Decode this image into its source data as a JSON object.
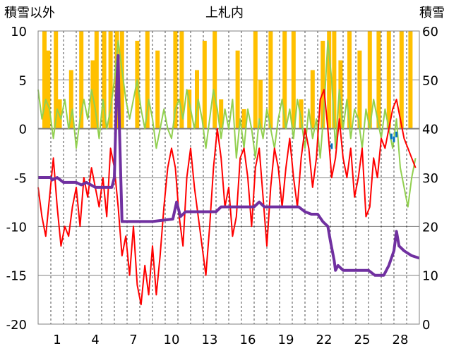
{
  "chart_data": {
    "type": "line",
    "title": "上札内",
    "left_axis_title": "積雪以外",
    "right_axis_title": "積雪",
    "y_left": {
      "range": [
        -20,
        10
      ],
      "ticks": [
        "10",
        "5",
        "0",
        "-5",
        "-10",
        "-15",
        "-20"
      ],
      "tick_values": [
        10,
        5,
        0,
        -5,
        -10,
        -15,
        -20
      ]
    },
    "y_right": {
      "range": [
        0,
        60
      ],
      "ticks": [
        "60",
        "50",
        "40",
        "30",
        "20",
        "10",
        "0"
      ],
      "tick_values": [
        60,
        50,
        40,
        30,
        20,
        10,
        0
      ]
    },
    "x": {
      "range": [
        0,
        30
      ],
      "tick_labels": [
        "1",
        "4",
        "7",
        "10",
        "13",
        "16",
        "19",
        "22",
        "25",
        "28"
      ],
      "tick_values": [
        1.5,
        4.5,
        7.5,
        10.5,
        13.5,
        16.5,
        19.5,
        22.5,
        25.5,
        28.5
      ]
    },
    "grid": true,
    "colors": {
      "precip_bar": "#ffc000",
      "temp_line": "#ff0000",
      "green_line": "#92d050",
      "snow_depth": "#7030a0",
      "blue_marks": "#0070c0",
      "zero_line": "#808080"
    },
    "series": [
      {
        "key": "precip",
        "type": "bar",
        "axis": "left",
        "values": [
          [
            0.5,
            10
          ],
          [
            0.8,
            8
          ],
          [
            1.4,
            10
          ],
          [
            1.7,
            3
          ],
          [
            2.6,
            6
          ],
          [
            3.4,
            10
          ],
          [
            4.3,
            7
          ],
          [
            4.6,
            10
          ],
          [
            5.2,
            10
          ],
          [
            5.7,
            10
          ],
          [
            6.2,
            10
          ],
          [
            6.6,
            10
          ],
          [
            7.8,
            9
          ],
          [
            8.6,
            10
          ],
          [
            9.4,
            8
          ],
          [
            10.8,
            10
          ],
          [
            11.3,
            10
          ],
          [
            11.9,
            4
          ],
          [
            12.5,
            6
          ],
          [
            13.1,
            9
          ],
          [
            13.9,
            10
          ],
          [
            14.4,
            3
          ],
          [
            15.7,
            8
          ],
          [
            16.2,
            2
          ],
          [
            17.1,
            10
          ],
          [
            17.5,
            5
          ],
          [
            18.3,
            10
          ],
          [
            19.4,
            10
          ],
          [
            20.1,
            10
          ],
          [
            20.7,
            3
          ],
          [
            21.6,
            6
          ],
          [
            22.4,
            9
          ],
          [
            22.9,
            10
          ],
          [
            23.3,
            10
          ],
          [
            23.8,
            7
          ],
          [
            24.5,
            10
          ],
          [
            25.3,
            8
          ],
          [
            26.1,
            10
          ],
          [
            26.8,
            10
          ],
          [
            27.6,
            10
          ],
          [
            28.6,
            10
          ],
          [
            29.3,
            10
          ]
        ]
      },
      {
        "key": "temperature",
        "type": "line",
        "axis": "left",
        "points": [
          [
            0,
            -6
          ],
          [
            0.3,
            -9
          ],
          [
            0.6,
            -11
          ],
          [
            0.9,
            -7
          ],
          [
            1.2,
            -3
          ],
          [
            1.5,
            -8
          ],
          [
            1.8,
            -12
          ],
          [
            2.1,
            -10
          ],
          [
            2.4,
            -11
          ],
          [
            2.7,
            -8
          ],
          [
            3.0,
            -6
          ],
          [
            3.3,
            -10
          ],
          [
            3.6,
            -5
          ],
          [
            3.9,
            -7
          ],
          [
            4.2,
            -4
          ],
          [
            4.5,
            -6
          ],
          [
            4.8,
            -8
          ],
          [
            5.1,
            -5
          ],
          [
            5.4,
            -9
          ],
          [
            5.7,
            -2
          ],
          [
            6.0,
            -4
          ],
          [
            6.3,
            -8
          ],
          [
            6.6,
            -13
          ],
          [
            6.9,
            -11
          ],
          [
            7.2,
            -15
          ],
          [
            7.5,
            -10
          ],
          [
            7.8,
            -16
          ],
          [
            8.1,
            -18
          ],
          [
            8.4,
            -14
          ],
          [
            8.7,
            -17
          ],
          [
            9.0,
            -12
          ],
          [
            9.3,
            -17
          ],
          [
            9.6,
            -13
          ],
          [
            9.9,
            -8
          ],
          [
            10.2,
            -4
          ],
          [
            10.5,
            -2
          ],
          [
            10.8,
            -4
          ],
          [
            11.1,
            -9
          ],
          [
            11.4,
            -12
          ],
          [
            11.7,
            -5
          ],
          [
            12.0,
            -2
          ],
          [
            12.3,
            -6
          ],
          [
            12.6,
            -9
          ],
          [
            12.9,
            -12
          ],
          [
            13.2,
            -15
          ],
          [
            13.5,
            -10
          ],
          [
            13.8,
            -4
          ],
          [
            14.1,
            0
          ],
          [
            14.4,
            -3
          ],
          [
            14.7,
            -8
          ],
          [
            15.0,
            -6
          ],
          [
            15.3,
            -11
          ],
          [
            15.6,
            -9
          ],
          [
            15.9,
            -3
          ],
          [
            16.2,
            -2
          ],
          [
            16.5,
            -5
          ],
          [
            16.8,
            -10
          ],
          [
            17.1,
            -4
          ],
          [
            17.4,
            -2
          ],
          [
            17.7,
            -7
          ],
          [
            18.0,
            -12
          ],
          [
            18.3,
            -6
          ],
          [
            18.6,
            -2
          ],
          [
            18.9,
            -4
          ],
          [
            19.2,
            -8
          ],
          [
            19.5,
            -4
          ],
          [
            19.8,
            -1
          ],
          [
            20.1,
            -5
          ],
          [
            20.4,
            -8
          ],
          [
            20.7,
            -3
          ],
          [
            21.0,
            0
          ],
          [
            21.3,
            -2
          ],
          [
            21.6,
            -6
          ],
          [
            21.9,
            -3
          ],
          [
            22.2,
            3
          ],
          [
            22.5,
            4
          ],
          [
            22.8,
            0
          ],
          [
            23.1,
            -5
          ],
          [
            23.4,
            -3
          ],
          [
            23.7,
            1
          ],
          [
            24.0,
            -3
          ],
          [
            24.3,
            -5
          ],
          [
            24.6,
            -2
          ],
          [
            24.9,
            -7
          ],
          [
            25.2,
            -5
          ],
          [
            25.5,
            -2
          ],
          [
            25.8,
            -9
          ],
          [
            26.1,
            -8
          ],
          [
            26.4,
            -3
          ],
          [
            26.7,
            -5
          ],
          [
            27.0,
            -1
          ],
          [
            27.3,
            -2
          ],
          [
            27.6,
            0
          ],
          [
            27.9,
            2
          ],
          [
            28.2,
            3
          ],
          [
            28.5,
            1
          ],
          [
            28.8,
            -1
          ],
          [
            29.1,
            -2
          ],
          [
            29.4,
            -3
          ],
          [
            29.7,
            -4
          ]
        ]
      },
      {
        "key": "green",
        "type": "line",
        "axis": "left",
        "points": [
          [
            0,
            4
          ],
          [
            0.3,
            1
          ],
          [
            0.6,
            3
          ],
          [
            0.9,
            2
          ],
          [
            1.2,
            -1
          ],
          [
            1.5,
            2
          ],
          [
            1.8,
            1
          ],
          [
            2.1,
            3
          ],
          [
            2.4,
            0
          ],
          [
            2.7,
            2
          ],
          [
            3.0,
            -2
          ],
          [
            3.3,
            1
          ],
          [
            3.6,
            3
          ],
          [
            3.9,
            1
          ],
          [
            4.2,
            4
          ],
          [
            4.5,
            2
          ],
          [
            4.8,
            -1
          ],
          [
            5.1,
            3
          ],
          [
            5.4,
            0
          ],
          [
            5.7,
            2
          ],
          [
            6.0,
            5
          ],
          [
            6.3,
            9
          ],
          [
            6.6,
            6
          ],
          [
            6.9,
            3
          ],
          [
            7.2,
            1
          ],
          [
            7.5,
            3
          ],
          [
            7.8,
            5
          ],
          [
            8.1,
            2
          ],
          [
            8.4,
            0
          ],
          [
            8.7,
            3
          ],
          [
            9.0,
            1
          ],
          [
            9.3,
            -2
          ],
          [
            9.6,
            0
          ],
          [
            9.9,
            2
          ],
          [
            10.2,
            0
          ],
          [
            10.5,
            -1
          ],
          [
            10.8,
            2
          ],
          [
            11.1,
            3
          ],
          [
            11.4,
            1
          ],
          [
            11.7,
            4
          ],
          [
            12.0,
            2
          ],
          [
            12.3,
            0
          ],
          [
            12.6,
            3
          ],
          [
            12.9,
            1
          ],
          [
            13.2,
            -2
          ],
          [
            13.5,
            1
          ],
          [
            13.8,
            4
          ],
          [
            14.1,
            2
          ],
          [
            14.4,
            -1
          ],
          [
            14.7,
            2
          ],
          [
            15.0,
            0
          ],
          [
            15.3,
            3
          ],
          [
            15.6,
            -3
          ],
          [
            15.9,
            1
          ],
          [
            16.2,
            -2
          ],
          [
            16.5,
            2
          ],
          [
            16.8,
            0
          ],
          [
            17.1,
            -3
          ],
          [
            17.4,
            1
          ],
          [
            17.7,
            -1
          ],
          [
            18.0,
            2
          ],
          [
            18.3,
            0
          ],
          [
            18.6,
            -2
          ],
          [
            18.9,
            1
          ],
          [
            19.2,
            3
          ],
          [
            19.5,
            0
          ],
          [
            19.8,
            2
          ],
          [
            20.1,
            -1
          ],
          [
            20.4,
            3
          ],
          [
            20.7,
            1
          ],
          [
            21.0,
            -2
          ],
          [
            21.3,
            2
          ],
          [
            21.6,
            -1
          ],
          [
            21.9,
            1
          ],
          [
            22.2,
            -3
          ],
          [
            22.5,
            2
          ],
          [
            22.8,
            9
          ],
          [
            23.1,
            5
          ],
          [
            23.4,
            -2
          ],
          [
            23.7,
            4
          ],
          [
            24.0,
            0
          ],
          [
            24.3,
            3
          ],
          [
            24.6,
            -1
          ],
          [
            24.9,
            2
          ],
          [
            25.2,
            1
          ],
          [
            25.5,
            -2
          ],
          [
            25.8,
            2
          ],
          [
            26.1,
            0
          ],
          [
            26.4,
            3
          ],
          [
            26.7,
            1
          ],
          [
            27.0,
            -1
          ],
          [
            27.3,
            2
          ],
          [
            27.6,
            0
          ],
          [
            27.9,
            -2
          ],
          [
            28.2,
            1
          ],
          [
            28.5,
            -4
          ],
          [
            28.8,
            -6
          ],
          [
            29.1,
            -8
          ],
          [
            29.4,
            -5
          ],
          [
            29.7,
            -3
          ]
        ]
      },
      {
        "key": "snow_depth",
        "type": "line",
        "axis": "right",
        "points": [
          [
            0,
            30
          ],
          [
            1.0,
            30
          ],
          [
            1.1,
            29.5
          ],
          [
            1.5,
            30
          ],
          [
            2.0,
            29
          ],
          [
            3.0,
            29
          ],
          [
            3.4,
            28.5
          ],
          [
            3.8,
            29
          ],
          [
            4.5,
            28
          ],
          [
            5.8,
            28
          ],
          [
            6.0,
            30
          ],
          [
            6.2,
            50
          ],
          [
            6.3,
            55
          ],
          [
            6.4,
            40
          ],
          [
            6.6,
            21
          ],
          [
            7.0,
            21
          ],
          [
            9.0,
            21
          ],
          [
            10.6,
            21.5
          ],
          [
            10.9,
            25
          ],
          [
            11.2,
            22
          ],
          [
            11.6,
            23
          ],
          [
            12.0,
            23
          ],
          [
            14.0,
            23
          ],
          [
            14.4,
            24
          ],
          [
            15.0,
            24
          ],
          [
            17.0,
            24
          ],
          [
            17.4,
            25
          ],
          [
            17.8,
            24
          ],
          [
            20.5,
            24
          ],
          [
            21.0,
            23
          ],
          [
            21.5,
            22.5
          ],
          [
            22.0,
            22.5
          ],
          [
            22.4,
            21
          ],
          [
            22.8,
            20
          ],
          [
            23.0,
            17
          ],
          [
            23.3,
            13
          ],
          [
            23.4,
            11
          ],
          [
            23.6,
            12
          ],
          [
            24.0,
            11
          ],
          [
            24.5,
            11
          ],
          [
            25.0,
            11
          ],
          [
            26.0,
            11
          ],
          [
            26.5,
            10
          ],
          [
            27.2,
            10
          ],
          [
            27.6,
            12
          ],
          [
            28.0,
            15
          ],
          [
            28.2,
            19
          ],
          [
            28.4,
            16
          ],
          [
            28.8,
            15
          ],
          [
            29.4,
            14
          ],
          [
            30,
            13.5
          ]
        ]
      },
      {
        "key": "blue",
        "type": "marks",
        "axis": "left",
        "points": [
          [
            23.1,
            -1.5
          ],
          [
            27.8,
            -0.5
          ],
          [
            28.0,
            -0.8
          ],
          [
            28.2,
            -0.3
          ]
        ]
      }
    ]
  }
}
